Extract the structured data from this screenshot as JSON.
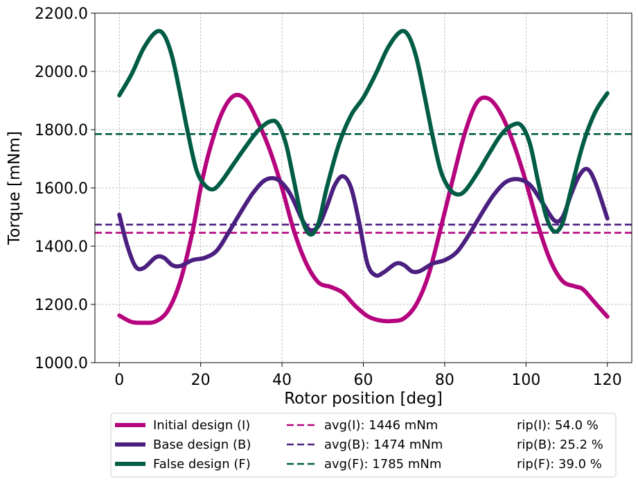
{
  "chart_data": {
    "type": "line",
    "xlabel": "Rotor position [deg]",
    "ylabel": "Torque [mNm]",
    "xlim": [
      -6,
      126
    ],
    "ylim": [
      1000,
      2200
    ],
    "xticks": [
      0,
      20,
      40,
      60,
      80,
      100,
      120
    ],
    "yticks": [
      1000,
      1200,
      1400,
      1600,
      1800,
      2000,
      2200
    ],
    "ytick_labels": [
      "1000.0",
      "1200.0",
      "1400.0",
      "1600.0",
      "1800.0",
      "2000.0",
      "2200.0"
    ],
    "grid": true,
    "legend_position": "bottom (below plot, three columns)",
    "colors": {
      "initial": "#b5037d",
      "base": "#4b1f7f",
      "false": "#005c45"
    },
    "series": [
      {
        "name": "Initial design (I)",
        "key": "initial",
        "points": [
          [
            0,
            1162
          ],
          [
            3,
            1140
          ],
          [
            6,
            1137
          ],
          [
            9,
            1142
          ],
          [
            12,
            1180
          ],
          [
            15,
            1280
          ],
          [
            18,
            1450
          ],
          [
            20,
            1600
          ],
          [
            22,
            1720
          ],
          [
            25,
            1850
          ],
          [
            28,
            1915
          ],
          [
            31,
            1905
          ],
          [
            34,
            1830
          ],
          [
            37,
            1730
          ],
          [
            40,
            1600
          ],
          [
            43,
            1450
          ],
          [
            46,
            1340
          ],
          [
            49,
            1275
          ],
          [
            52,
            1260
          ],
          [
            55,
            1240
          ],
          [
            58,
            1195
          ],
          [
            61,
            1160
          ],
          [
            64,
            1145
          ],
          [
            67,
            1143
          ],
          [
            70,
            1152
          ],
          [
            73,
            1200
          ],
          [
            76,
            1300
          ],
          [
            79,
            1460
          ],
          [
            82,
            1630
          ],
          [
            85,
            1790
          ],
          [
            88,
            1895
          ],
          [
            91,
            1905
          ],
          [
            94,
            1850
          ],
          [
            97,
            1750
          ],
          [
            100,
            1620
          ],
          [
            103,
            1470
          ],
          [
            106,
            1350
          ],
          [
            109,
            1280
          ],
          [
            112,
            1262
          ],
          [
            114,
            1252
          ],
          [
            117,
            1205
          ],
          [
            120,
            1158
          ]
        ]
      },
      {
        "name": "Base design (B)",
        "key": "base",
        "points": [
          [
            0,
            1508
          ],
          [
            2,
            1400
          ],
          [
            4,
            1330
          ],
          [
            6,
            1325
          ],
          [
            9,
            1362
          ],
          [
            11,
            1360
          ],
          [
            13,
            1335
          ],
          [
            15,
            1332
          ],
          [
            18,
            1352
          ],
          [
            21,
            1360
          ],
          [
            24,
            1385
          ],
          [
            27,
            1450
          ],
          [
            30,
            1520
          ],
          [
            33,
            1585
          ],
          [
            36,
            1628
          ],
          [
            39,
            1628
          ],
          [
            42,
            1580
          ],
          [
            45,
            1490
          ],
          [
            47,
            1455
          ],
          [
            49,
            1470
          ],
          [
            51,
            1535
          ],
          [
            53,
            1610
          ],
          [
            55,
            1640
          ],
          [
            57,
            1600
          ],
          [
            59,
            1480
          ],
          [
            61,
            1340
          ],
          [
            63,
            1300
          ],
          [
            65,
            1310
          ],
          [
            68,
            1340
          ],
          [
            70,
            1335
          ],
          [
            72,
            1313
          ],
          [
            74,
            1315
          ],
          [
            77,
            1340
          ],
          [
            80,
            1352
          ],
          [
            83,
            1380
          ],
          [
            86,
            1440
          ],
          [
            89,
            1510
          ],
          [
            92,
            1575
          ],
          [
            95,
            1620
          ],
          [
            98,
            1630
          ],
          [
            101,
            1610
          ],
          [
            104,
            1550
          ],
          [
            107,
            1488
          ],
          [
            109,
            1500
          ],
          [
            111,
            1575
          ],
          [
            113,
            1640
          ],
          [
            115,
            1665
          ],
          [
            117,
            1620
          ],
          [
            120,
            1495
          ]
        ]
      },
      {
        "name": "False design (F)",
        "key": "false",
        "points": [
          [
            0,
            1918
          ],
          [
            3,
            1990
          ],
          [
            6,
            2080
          ],
          [
            9,
            2135
          ],
          [
            11,
            2125
          ],
          [
            13,
            2050
          ],
          [
            15,
            1920
          ],
          [
            17,
            1780
          ],
          [
            19,
            1660
          ],
          [
            21,
            1610
          ],
          [
            23,
            1595
          ],
          [
            25,
            1620
          ],
          [
            28,
            1680
          ],
          [
            31,
            1740
          ],
          [
            34,
            1795
          ],
          [
            37,
            1828
          ],
          [
            39,
            1820
          ],
          [
            41,
            1750
          ],
          [
            43,
            1620
          ],
          [
            45,
            1490
          ],
          [
            47,
            1440
          ],
          [
            49,
            1480
          ],
          [
            51,
            1600
          ],
          [
            54,
            1750
          ],
          [
            57,
            1850
          ],
          [
            60,
            1910
          ],
          [
            63,
            1990
          ],
          [
            66,
            2080
          ],
          [
            69,
            2135
          ],
          [
            71,
            2125
          ],
          [
            73,
            2050
          ],
          [
            75,
            1920
          ],
          [
            77,
            1780
          ],
          [
            79,
            1660
          ],
          [
            81,
            1600
          ],
          [
            83,
            1578
          ],
          [
            85,
            1590
          ],
          [
            88,
            1650
          ],
          [
            91,
            1720
          ],
          [
            94,
            1785
          ],
          [
            97,
            1818
          ],
          [
            99,
            1812
          ],
          [
            101,
            1750
          ],
          [
            103,
            1620
          ],
          [
            105,
            1500
          ],
          [
            107,
            1450
          ],
          [
            109,
            1480
          ],
          [
            111,
            1590
          ],
          [
            114,
            1750
          ],
          [
            117,
            1860
          ],
          [
            120,
            1925
          ]
        ]
      },
      {
        "name": "avg(I): 1446 mNm",
        "key": "initial",
        "average": 1446
      },
      {
        "name": "avg(B): 1474 mNm",
        "key": "base",
        "average": 1474
      },
      {
        "name": "avg(F): 1785 mNm",
        "key": "false",
        "average": 1785
      }
    ],
    "ripple_labels": [
      "rip(I): 54.0 %",
      "rip(B): 25.2 %",
      "rip(F): 39.0 %"
    ]
  }
}
